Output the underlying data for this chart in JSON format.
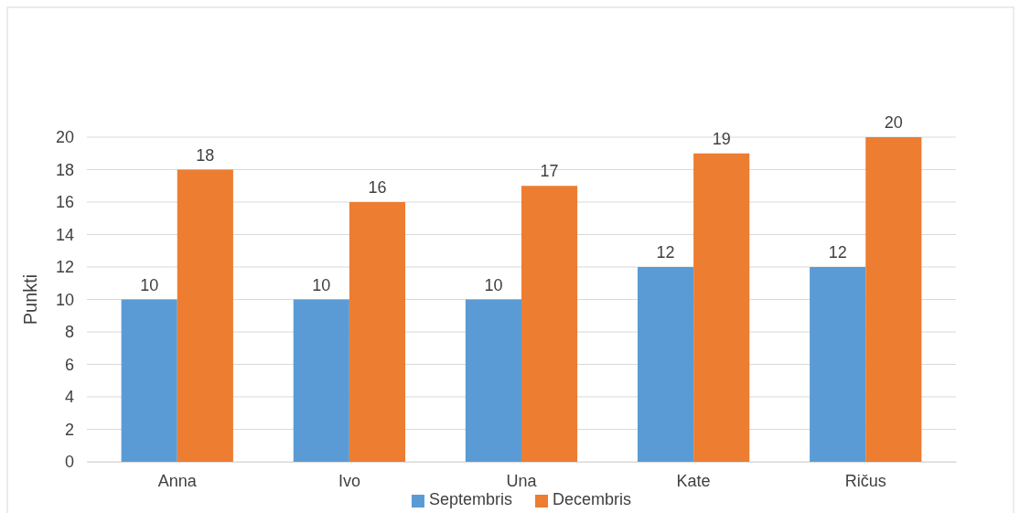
{
  "chart_data": {
    "type": "bar",
    "ylabel": "Punkti",
    "categories": [
      "Anna",
      "Ivo",
      "Una",
      "Kate",
      "Ričus"
    ],
    "series": [
      {
        "name": "Septembris",
        "color": "#5b9bd5",
        "values": [
          10,
          10,
          10,
          12,
          12
        ]
      },
      {
        "name": "Decembris",
        "color": "#ed7d31",
        "values": [
          18,
          16,
          17,
          19,
          20
        ]
      }
    ],
    "ylim": [
      0,
      20
    ],
    "yticks": [
      0,
      2,
      4,
      6,
      8,
      10,
      12,
      14,
      16,
      18,
      20
    ],
    "grid": "y",
    "legend": "bottom",
    "data_labels": true
  }
}
